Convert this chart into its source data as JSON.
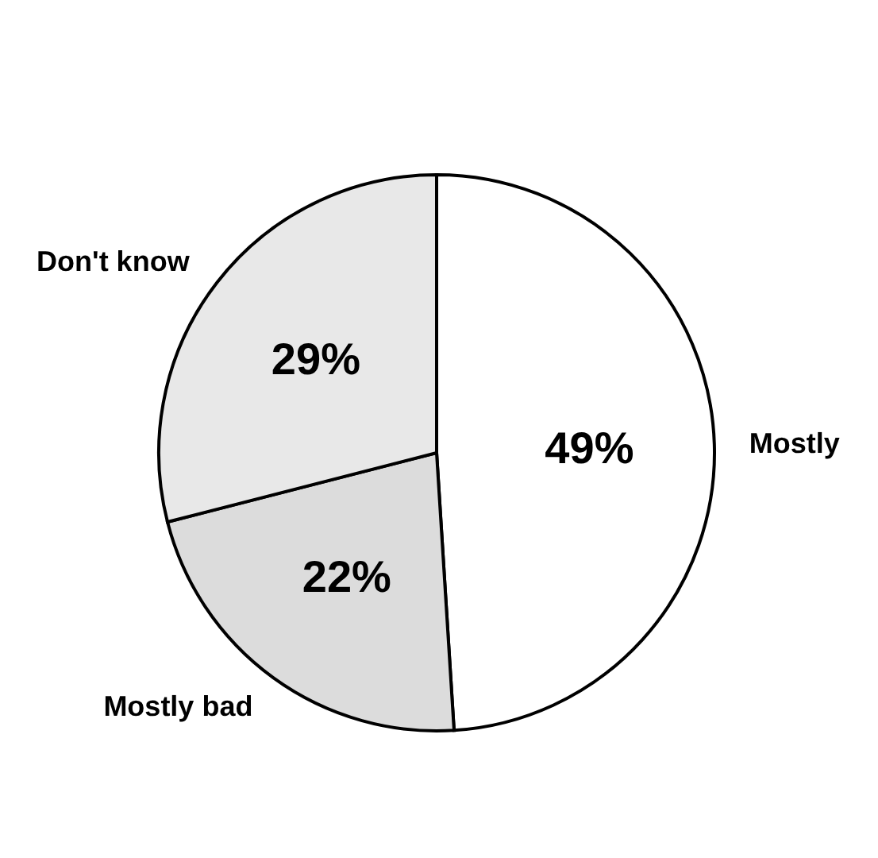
{
  "chart_data": {
    "type": "pie",
    "categories": [
      "Mostly",
      "Mostly bad",
      "Don't know"
    ],
    "values": [
      49,
      22,
      29
    ],
    "colors": [
      "#ffffff",
      "#dcdcdc",
      "#e8e8e8"
    ],
    "value_labels": [
      "49%",
      "22%",
      "29%"
    ]
  }
}
